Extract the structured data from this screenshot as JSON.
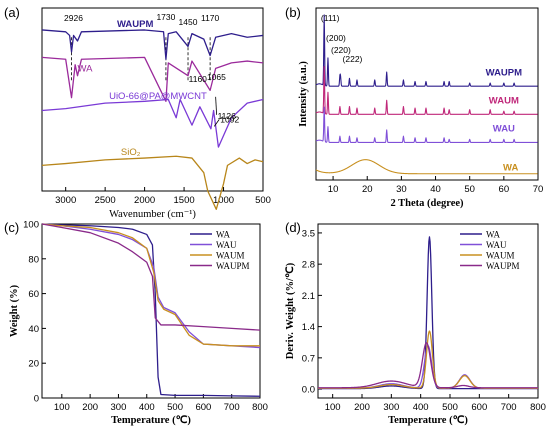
{
  "chart_data": [
    {
      "id": "a",
      "type": "line",
      "panel_label": "(a)",
      "xlabel": "Wavenumber (cm⁻¹)",
      "ylabel": "",
      "xlim": [
        3300,
        500
      ],
      "x_ticks": [
        3000,
        2500,
        2000,
        1500,
        1000,
        500
      ],
      "grid": false,
      "legend": "none",
      "series": [
        {
          "name": "WAUPM",
          "color": "#2e1e8c",
          "offset": 88,
          "label_x": 2350,
          "points": [
            [
              3300,
              0
            ],
            [
              3000,
              -1
            ],
            [
              2950,
              -3
            ],
            [
              2926,
              -12
            ],
            [
              2900,
              -3
            ],
            [
              2850,
              -6
            ],
            [
              2800,
              -1
            ],
            [
              2000,
              0
            ],
            [
              1760,
              -1
            ],
            [
              1730,
              -16
            ],
            [
              1700,
              -2
            ],
            [
              1600,
              -1
            ],
            [
              1450,
              -9
            ],
            [
              1400,
              -2
            ],
            [
              1250,
              -5
            ],
            [
              1170,
              -14
            ],
            [
              1100,
              -4
            ],
            [
              900,
              -2
            ],
            [
              700,
              -4
            ],
            [
              500,
              -3
            ]
          ]
        },
        {
          "name": "WA",
          "color": "#9b2a9b",
          "offset": 73,
          "label_x": 2850,
          "points": [
            [
              3300,
              0
            ],
            [
              3000,
              -1
            ],
            [
              2926,
              -22
            ],
            [
              2880,
              -4
            ],
            [
              2850,
              -10
            ],
            [
              2800,
              -1
            ],
            [
              2000,
              0
            ],
            [
              1730,
              -24
            ],
            [
              1700,
              -3
            ],
            [
              1450,
              -10
            ],
            [
              1400,
              -2
            ],
            [
              1170,
              -18
            ],
            [
              1100,
              -6
            ],
            [
              900,
              -3
            ],
            [
              700,
              -2
            ],
            [
              500,
              -3
            ]
          ]
        },
        {
          "name": "UiO-66@PA@MWCNT",
          "color": "#7a3ad6",
          "offset": 46,
          "label_x": 2450,
          "points": [
            [
              3300,
              -2
            ],
            [
              3000,
              -1
            ],
            [
              2500,
              2
            ],
            [
              2000,
              3
            ],
            [
              1700,
              4
            ],
            [
              1600,
              -6
            ],
            [
              1550,
              4
            ],
            [
              1400,
              -10
            ],
            [
              1300,
              0
            ],
            [
              1160,
              -12
            ],
            [
              1126,
              -2
            ],
            [
              1065,
              -22
            ],
            [
              900,
              -6
            ],
            [
              700,
              2
            ],
            [
              500,
              4
            ]
          ]
        },
        {
          "name": "SiO₂",
          "color": "#b8861a",
          "offset": 20,
          "label_x": 2300,
          "points": [
            [
              3300,
              -6
            ],
            [
              3000,
              -5
            ],
            [
              2500,
              -3
            ],
            [
              2000,
              -2
            ],
            [
              1600,
              -1
            ],
            [
              1400,
              -2
            ],
            [
              1250,
              -10
            ],
            [
              1200,
              -20
            ],
            [
              1092,
              -30
            ],
            [
              1000,
              -16
            ],
            [
              950,
              -6
            ],
            [
              800,
              -2
            ],
            [
              700,
              -5
            ],
            [
              600,
              -3
            ],
            [
              500,
              -4
            ]
          ]
        }
      ],
      "annotations": [
        {
          "text": "2926",
          "x": 2926
        },
        {
          "text": "1730",
          "x": 1730
        },
        {
          "text": "1450",
          "x": 1450
        },
        {
          "text": "1170",
          "x": 1170
        },
        {
          "text": "1160",
          "x": 1160
        },
        {
          "text": "1126",
          "x": 1126
        },
        {
          "text": "1065",
          "x": 1065
        },
        {
          "text": "1092",
          "x": 1092
        }
      ]
    },
    {
      "id": "b",
      "type": "line",
      "panel_label": "(b)",
      "xlabel": "2 Theta (degree)",
      "ylabel": "Intensity (a.u.)",
      "xlim": [
        5,
        70
      ],
      "x_ticks": [
        10,
        20,
        30,
        40,
        50,
        60,
        70
      ],
      "grid": false,
      "legend": "none",
      "series": [
        {
          "name": "WAUPM",
          "color": "#2e1e8c",
          "offset": 60,
          "label_x": 60,
          "peaks": [
            [
              7.4,
              45
            ],
            [
              8.5,
              18
            ],
            [
              12.0,
              6
            ],
            [
              12.2,
              5
            ],
            [
              14.8,
              5
            ],
            [
              17.0,
              4
            ],
            [
              22.2,
              4
            ],
            [
              25.7,
              9
            ],
            [
              30.6,
              4
            ],
            [
              34.0,
              3
            ],
            [
              37.2,
              3
            ],
            [
              42.5,
              3
            ],
            [
              44.0,
              3
            ],
            [
              50.0,
              2
            ],
            [
              56.0,
              2
            ],
            [
              60.0,
              2
            ],
            [
              63.0,
              2
            ]
          ]
        },
        {
          "name": "WAUM",
          "color": "#c0287a",
          "offset": 42,
          "label_x": 60,
          "peaks": [
            [
              7.4,
              30
            ],
            [
              8.5,
              14
            ],
            [
              12.0,
              5
            ],
            [
              14.8,
              5
            ],
            [
              17.0,
              4
            ],
            [
              22.2,
              4
            ],
            [
              25.7,
              9
            ],
            [
              30.6,
              5
            ],
            [
              34.0,
              4
            ],
            [
              37.2,
              4
            ],
            [
              42.5,
              4
            ],
            [
              44.0,
              3
            ],
            [
              50.0,
              3
            ],
            [
              56.0,
              3
            ],
            [
              60.0,
              2
            ],
            [
              63.0,
              2
            ]
          ]
        },
        {
          "name": "WAU",
          "color": "#8050d8",
          "offset": 24,
          "label_x": 60,
          "peaks": [
            [
              7.4,
              22
            ],
            [
              8.5,
              10
            ],
            [
              12.0,
              4
            ],
            [
              14.8,
              4
            ],
            [
              17.0,
              3
            ],
            [
              22.2,
              3
            ],
            [
              25.7,
              8
            ],
            [
              30.6,
              4
            ],
            [
              34.0,
              3
            ],
            [
              37.2,
              3
            ],
            [
              42.5,
              3
            ],
            [
              44.0,
              2
            ],
            [
              50.0,
              2
            ],
            [
              56.0,
              2
            ],
            [
              60.0,
              2
            ],
            [
              63.0,
              2
            ]
          ]
        },
        {
          "name": "WA",
          "color": "#c89020",
          "offset": 4,
          "label_x": 62,
          "halo": [
            19.5,
            9,
            4.0
          ]
        }
      ],
      "annotations": [
        {
          "text": "(111)",
          "x": 7.4
        },
        {
          "text": "(200)",
          "x": 8.5
        },
        {
          "text": "(220)",
          "x": 12.0
        },
        {
          "text": "(222)",
          "x": 14.8
        }
      ]
    },
    {
      "id": "c",
      "type": "line",
      "panel_label": "(c)",
      "xlabel": "Temperature (℃)",
      "ylabel": "Weight (%)",
      "xlim": [
        30,
        800
      ],
      "ylim": [
        0,
        100
      ],
      "x_ticks": [
        100,
        200,
        300,
        400,
        500,
        600,
        700,
        800
      ],
      "y_ticks": [
        0,
        20,
        40,
        60,
        80,
        100
      ],
      "grid": false,
      "legend": "top-right",
      "series": [
        {
          "name": "WA",
          "color": "#2e1e8c",
          "x": [
            30,
            100,
            200,
            300,
            350,
            400,
            420,
            430,
            440,
            450,
            500,
            600,
            700,
            800
          ],
          "y": [
            100,
            99.5,
            99,
            98,
            97,
            94,
            88,
            60,
            12,
            2,
            1.5,
            1.5,
            1.2,
            1
          ]
        },
        {
          "name": "WAU",
          "color": "#8050d8",
          "x": [
            30,
            100,
            200,
            300,
            350,
            400,
            425,
            440,
            460,
            500,
            550,
            600,
            700,
            800
          ],
          "y": [
            100,
            99,
            97,
            94,
            91,
            86,
            75,
            58,
            52,
            49,
            38,
            31,
            30,
            29
          ]
        },
        {
          "name": "WAUM",
          "color": "#c89020",
          "x": [
            30,
            100,
            200,
            300,
            350,
            400,
            425,
            440,
            460,
            500,
            550,
            600,
            700,
            800
          ],
          "y": [
            100,
            99,
            98,
            95,
            92,
            86,
            72,
            56,
            51,
            48,
            36,
            31,
            30,
            30
          ]
        },
        {
          "name": "WAUPM",
          "color": "#8a2a8a",
          "x": [
            30,
            100,
            200,
            300,
            350,
            400,
            420,
            430,
            450,
            500,
            600,
            700,
            800
          ],
          "y": [
            100,
            98,
            95,
            89,
            84,
            78,
            70,
            46,
            42,
            42,
            41,
            40,
            39
          ]
        }
      ]
    },
    {
      "id": "d",
      "type": "line",
      "panel_label": "(d)",
      "xlabel": "Temperature (℃)",
      "ylabel": "Deriv. Weight (%/℃)",
      "xlim": [
        50,
        800
      ],
      "ylim": [
        -0.2,
        3.7
      ],
      "x_ticks": [
        100,
        200,
        300,
        400,
        500,
        600,
        700,
        800
      ],
      "y_ticks": [
        0.0,
        0.7,
        1.4,
        2.1,
        2.8,
        3.5
      ],
      "grid": false,
      "legend": "top-right",
      "series": [
        {
          "name": "WA",
          "color": "#2e1e8c",
          "base": 0.01,
          "peaks": [
            [
              430,
              3.4,
              8
            ],
            [
              300,
              0.06,
              40
            ]
          ]
        },
        {
          "name": "WAU",
          "color": "#8050d8",
          "base": 0.02,
          "peaks": [
            [
              425,
              0.95,
              12
            ],
            [
              550,
              0.3,
              18
            ],
            [
              300,
              0.1,
              40
            ]
          ]
        },
        {
          "name": "WAUM",
          "color": "#c89020",
          "base": 0.02,
          "peaks": [
            [
              430,
              1.28,
              10
            ],
            [
              550,
              0.28,
              18
            ],
            [
              300,
              0.08,
              40
            ]
          ]
        },
        {
          "name": "WAUPM",
          "color": "#8a2a8a",
          "base": 0.03,
          "peaks": [
            [
              420,
              1.0,
              14
            ],
            [
              300,
              0.15,
              50
            ],
            [
              545,
              0.05,
              20
            ]
          ]
        }
      ]
    }
  ]
}
